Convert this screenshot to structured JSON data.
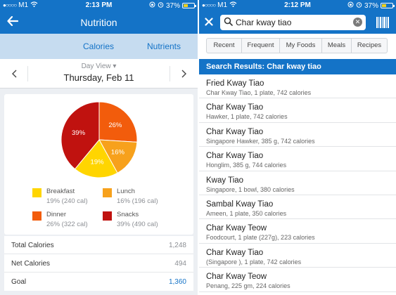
{
  "left": {
    "status": {
      "carrier": "M1",
      "time": "2:13 PM",
      "battery": "37%"
    },
    "header": {
      "title": "Nutrition"
    },
    "tabs": {
      "calories": "Calories",
      "nutrients": "Nutrients"
    },
    "day": {
      "view_label": "Day View",
      "date": "Thursday, Feb 11"
    },
    "chart_data": {
      "type": "pie",
      "slices": [
        {
          "label": "Breakfast",
          "percent": 19,
          "calories": 240,
          "color": "#ffd500",
          "text": "19%"
        },
        {
          "label": "Lunch",
          "percent": 16,
          "calories": 196,
          "color": "#f7a11c",
          "text": "16%"
        },
        {
          "label": "Dinner",
          "percent": 26,
          "calories": 322,
          "color": "#f25c0c",
          "text": "26%"
        },
        {
          "label": "Snacks",
          "percent": 39,
          "calories": 490,
          "color": "#c0120f",
          "text": "39%"
        }
      ]
    },
    "legend": [
      {
        "name": "Breakfast",
        "detail": "19% (240 cal)",
        "color": "#ffd500"
      },
      {
        "name": "Lunch",
        "detail": "16% (196 cal)",
        "color": "#f7a11c"
      },
      {
        "name": "Dinner",
        "detail": "26% (322 cal)",
        "color": "#f25c0c"
      },
      {
        "name": "Snacks",
        "detail": "39% (490 cal)",
        "color": "#c0120f"
      }
    ],
    "totals": [
      {
        "label": "Total Calories",
        "value": "1,248"
      },
      {
        "label": "Net Calories",
        "value": "494"
      },
      {
        "label": "Goal",
        "value": "1,360"
      }
    ]
  },
  "right": {
    "status": {
      "carrier": "M1",
      "time": "2:12 PM",
      "battery": "37%"
    },
    "search": {
      "value": "Char kway tiao"
    },
    "tabs": [
      "Recent",
      "Frequent",
      "My Foods",
      "Meals",
      "Recipes"
    ],
    "results_header": "Search Results: Char kway tiao",
    "results": [
      {
        "name": "Fried Kway Tiao",
        "desc": "Char Kway Tiao, 1 plate, 742 calories"
      },
      {
        "name": "Char Kway Tiao",
        "desc": "Hawker, 1 plate, 742 calories"
      },
      {
        "name": "Char Kway Tiao",
        "desc": "Singapore Hawker, 385 g, 742 calories"
      },
      {
        "name": "Char Kway Tiao",
        "desc": "Honglim, 385 g, 744 calories"
      },
      {
        "name": "Kway Tiao",
        "desc": "Singapore, 1 bowl, 380 calories"
      },
      {
        "name": "Sambal Kway Tiao",
        "desc": "Ameen, 1 plate, 350 calories"
      },
      {
        "name": "Char Kway Teow",
        "desc": "Foodcourt, 1 plate (227g), 223 calories"
      },
      {
        "name": "Char Kway Tiao",
        "desc": "(Singapore ), 1 plate, 742 calories"
      },
      {
        "name": "Char Kway Teow",
        "desc": "Penang, 225 gm, 224 calories"
      }
    ]
  }
}
